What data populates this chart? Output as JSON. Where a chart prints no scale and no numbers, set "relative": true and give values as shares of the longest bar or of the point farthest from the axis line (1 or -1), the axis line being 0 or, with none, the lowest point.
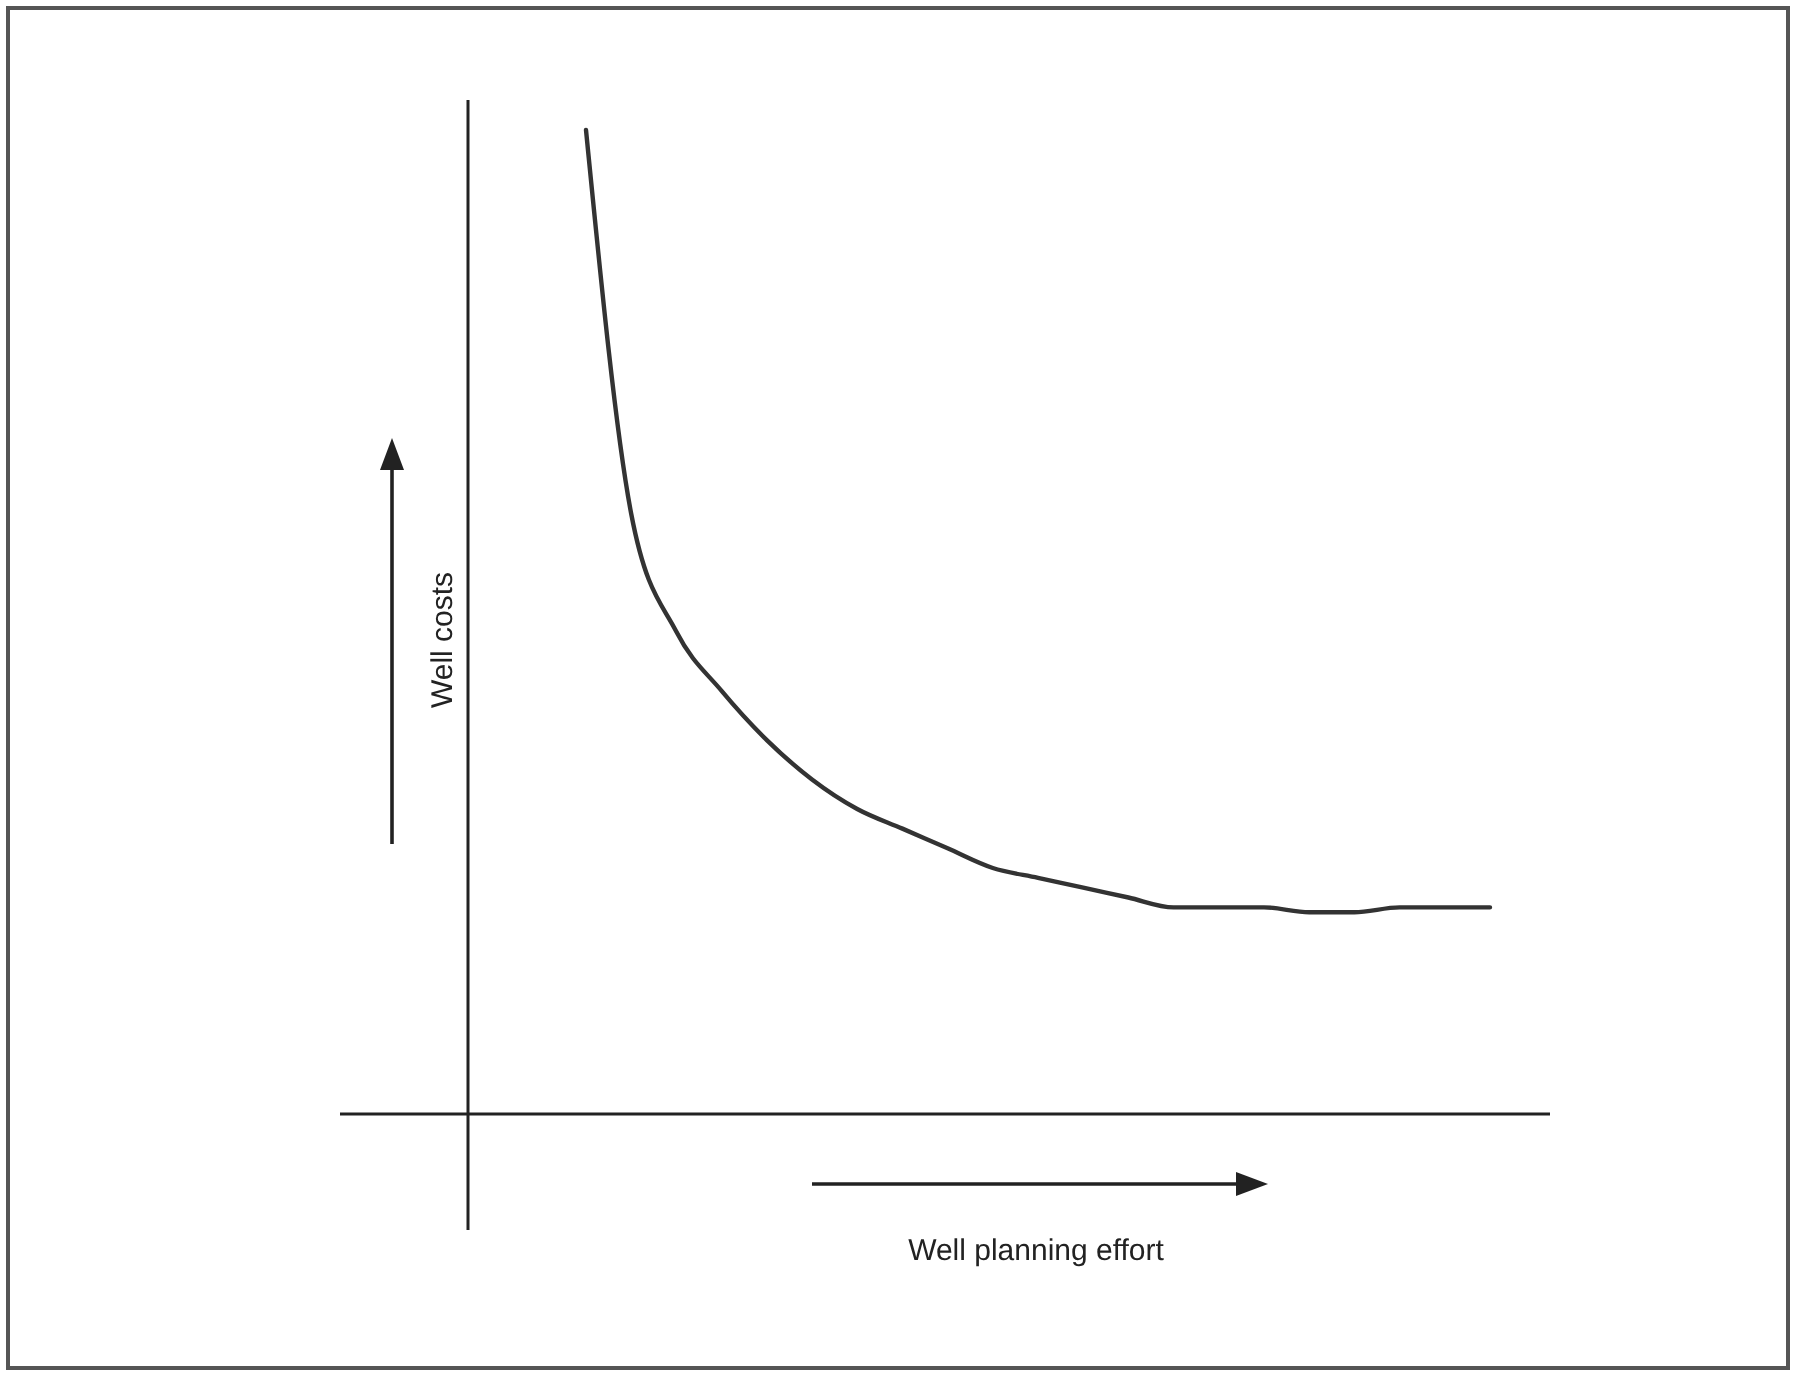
{
  "chart_data": {
    "type": "line",
    "xlabel": "Well planning effort",
    "ylabel": "Well costs",
    "relative": true,
    "categories": [
      null,
      null,
      null,
      null,
      null,
      null,
      null,
      null,
      null,
      null,
      null,
      null,
      null,
      null,
      null,
      null,
      null,
      null,
      null,
      null,
      null
    ],
    "series": [
      {
        "color": "#333333",
        "values": [
          1.0,
          0.61,
          0.49,
          0.43,
          0.38,
          0.34,
          0.31,
          0.29,
          0.27,
          0.25,
          0.24,
          0.23,
          0.22,
          0.21,
          0.21,
          0.21,
          0.205,
          0.205,
          0.21,
          0.21,
          0.21
        ]
      }
    ],
    "marker": "none",
    "line_style": "solid"
  }
}
